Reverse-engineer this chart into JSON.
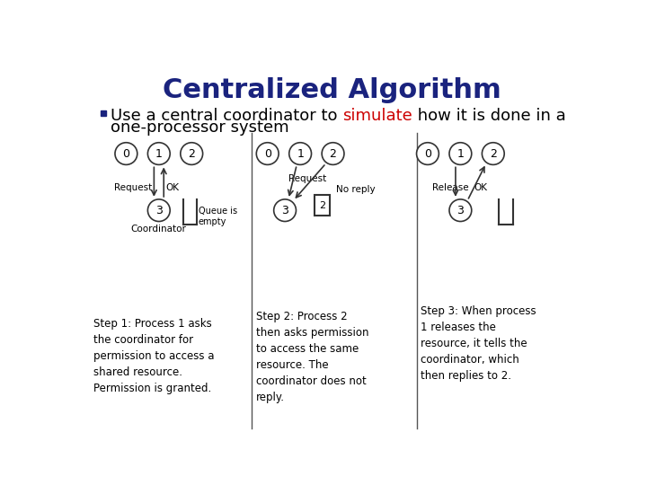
{
  "title": "Centralized Algorithm",
  "title_color": "#1a237e",
  "title_fontsize": 22,
  "bullet_text_part1": "Use a central coordinator to ",
  "bullet_highlight": "simulate",
  "bullet_highlight_color": "#cc0000",
  "bullet_text_part2_a": " how it is done in a",
  "bullet_text_part2_b": "one-processor system",
  "bullet_fontsize": 13,
  "background_color": "#ffffff",
  "step1_caption": "Step 1: Process 1 asks\nthe coordinator for\npermission to access a\nshared resource.\nPermission is granted.",
  "step2_caption": "Step 2: Process 2\nthen asks permission\nto access the same\nresource. The\ncoordinator does not\nreply.",
  "step3_caption": "Step 3: When process\n1 releases the\nresource, it tells the\ncoordinator, which\nthen replies to 2.",
  "caption_fontsize": 8.5,
  "divider_color": "#555555",
  "node_edge_color": "#333333",
  "node_fill_color": "#ffffff",
  "arrow_color": "#333333",
  "queue_box_color": "#333333",
  "bullet_square_color": "#1a237e"
}
